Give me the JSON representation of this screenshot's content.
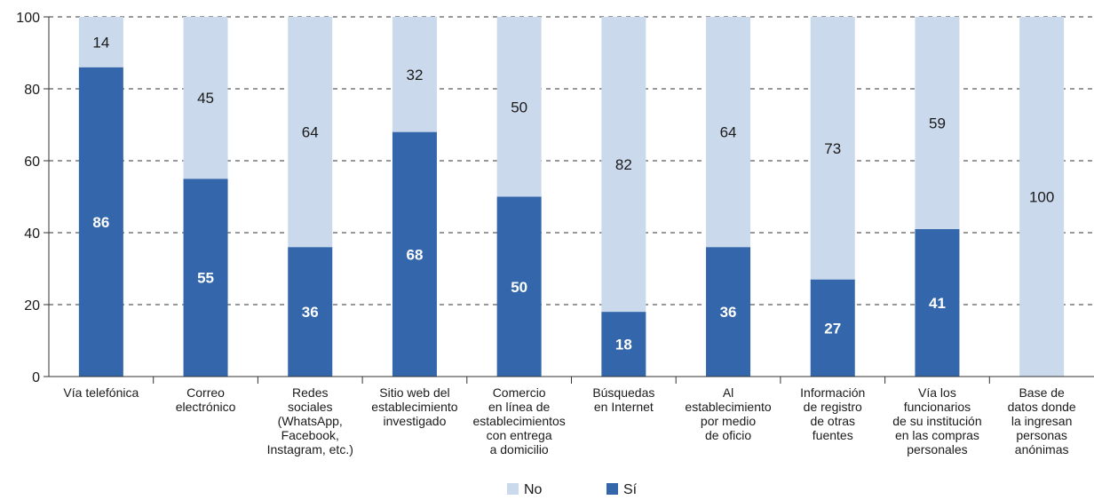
{
  "chart_data": {
    "type": "bar",
    "stacked": true,
    "orientation": "vertical",
    "categories": [
      [
        "Vía telefónica"
      ],
      [
        "Correo",
        "electrónico"
      ],
      [
        "Redes",
        "sociales",
        "(WhatsApp,",
        "Facebook,",
        "Instagram, etc.)"
      ],
      [
        "Sitio web del",
        "establecimiento",
        "investigado"
      ],
      [
        "Comercio",
        "en línea de",
        "establecimientos",
        "con entrega",
        "a domicilio"
      ],
      [
        "Búsquedas",
        "en Internet"
      ],
      [
        "Al",
        "establecimiento",
        "por medio",
        "de oficio"
      ],
      [
        "Información",
        "de registro",
        "de otras",
        "fuentes"
      ],
      [
        "Vía los",
        "funcionarios",
        "de su institución",
        "en las compras",
        "personales"
      ],
      [
        "Base de",
        "datos donde",
        "la ingresan",
        "personas",
        "anónimas"
      ]
    ],
    "series": [
      {
        "name": "Sí",
        "color": "#3366aa",
        "values": [
          86,
          55,
          36,
          68,
          50,
          18,
          36,
          27,
          41,
          0
        ]
      },
      {
        "name": "No",
        "color": "#cbd9ec",
        "values": [
          14,
          45,
          64,
          32,
          50,
          82,
          64,
          73,
          59,
          100
        ]
      }
    ],
    "yticks": [
      "0",
      "20",
      "40",
      "60",
      "80",
      "100"
    ],
    "ylim": [
      0,
      100
    ],
    "grid": "dashed horizontal",
    "legend": {
      "position": "bottom-center",
      "entries": [
        "No",
        "Sí"
      ]
    },
    "title": "",
    "xlabel": "",
    "ylabel": ""
  }
}
